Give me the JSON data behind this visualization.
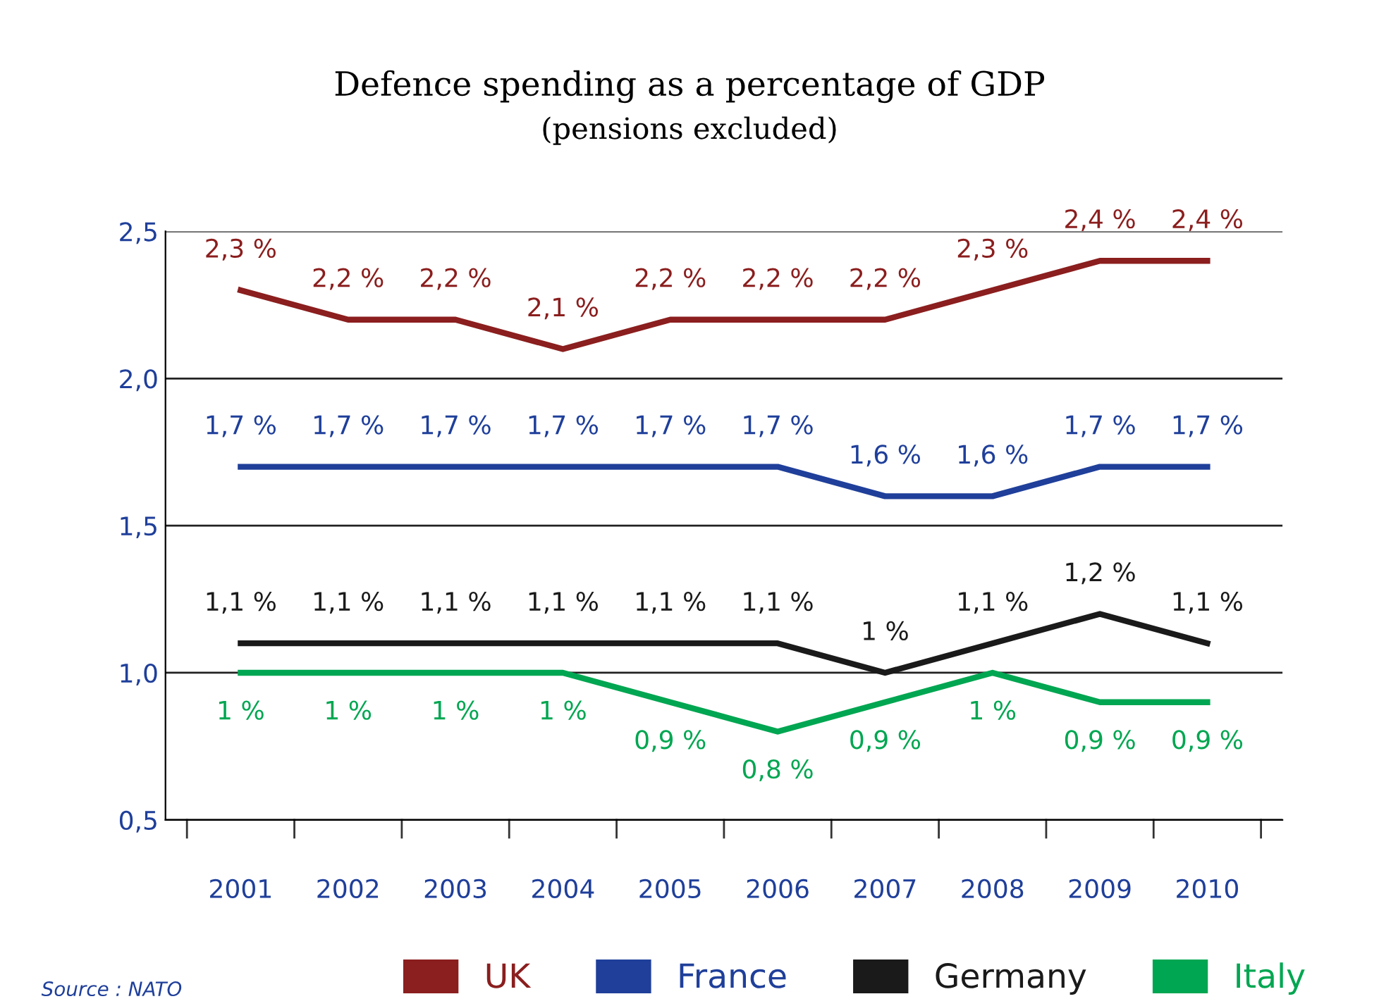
{
  "chart_data": {
    "type": "line",
    "title": "Defence spending as a percentage of GDP",
    "subtitle": "(pensions excluded)",
    "categories": [
      "2001",
      "2002",
      "2003",
      "2004",
      "2005",
      "2006",
      "2007",
      "2008",
      "2009",
      "2010"
    ],
    "series": [
      {
        "name": "UK",
        "color": "#8b1e1e",
        "values": [
          2.3,
          2.2,
          2.2,
          2.1,
          2.2,
          2.2,
          2.2,
          2.3,
          2.4,
          2.4
        ],
        "value_labels": [
          "2,3 %",
          "2,2 %",
          "2,2 %",
          "2,1 %",
          "2,2 %",
          "2,2 %",
          "2,2 %",
          "2,3 %",
          "2,4 %",
          "2,4 %"
        ]
      },
      {
        "name": "France",
        "color": "#1f3f9a",
        "values": [
          1.7,
          1.7,
          1.7,
          1.7,
          1.7,
          1.7,
          1.6,
          1.6,
          1.7,
          1.7
        ],
        "value_labels": [
          "1,7 %",
          "1,7 %",
          "1,7 %",
          "1,7 %",
          "1,7 %",
          "1,7 %",
          "1,6 %",
          "1,6 %",
          "1,7 %",
          "1,7 %"
        ]
      },
      {
        "name": "Germany",
        "color": "#1a1a1a",
        "values": [
          1.1,
          1.1,
          1.1,
          1.1,
          1.1,
          1.1,
          1.0,
          1.1,
          1.2,
          1.1
        ],
        "value_labels": [
          "1,1 %",
          "1,1 %",
          "1,1 %",
          "1,1 %",
          "1,1 %",
          "1,1 %",
          "1 %",
          "1,1 %",
          "1,2 %",
          "1,1 %"
        ]
      },
      {
        "name": "Italy",
        "color": "#00a651",
        "values": [
          1.0,
          1.0,
          1.0,
          1.0,
          0.9,
          0.8,
          0.9,
          1.0,
          0.9,
          0.9
        ],
        "value_labels": [
          "1 %",
          "1 %",
          "1 %",
          "1 %",
          "0,9 %",
          "0,8 %",
          "0,9 %",
          "1 %",
          "0,9 %",
          "0,9 %"
        ]
      }
    ],
    "ylim": [
      0.5,
      2.5
    ],
    "yticks": [
      {
        "value": 0.5,
        "label": "0,5"
      },
      {
        "value": 1.0,
        "label": "1,0"
      },
      {
        "value": 1.5,
        "label": "1,5"
      },
      {
        "value": 2.0,
        "label": "2,0"
      },
      {
        "value": 2.5,
        "label": "2,5"
      }
    ],
    "grid": "y",
    "legend": "bottom",
    "marker": "none",
    "line_style": "solid",
    "annotations": [
      "Source : NATO"
    ]
  }
}
